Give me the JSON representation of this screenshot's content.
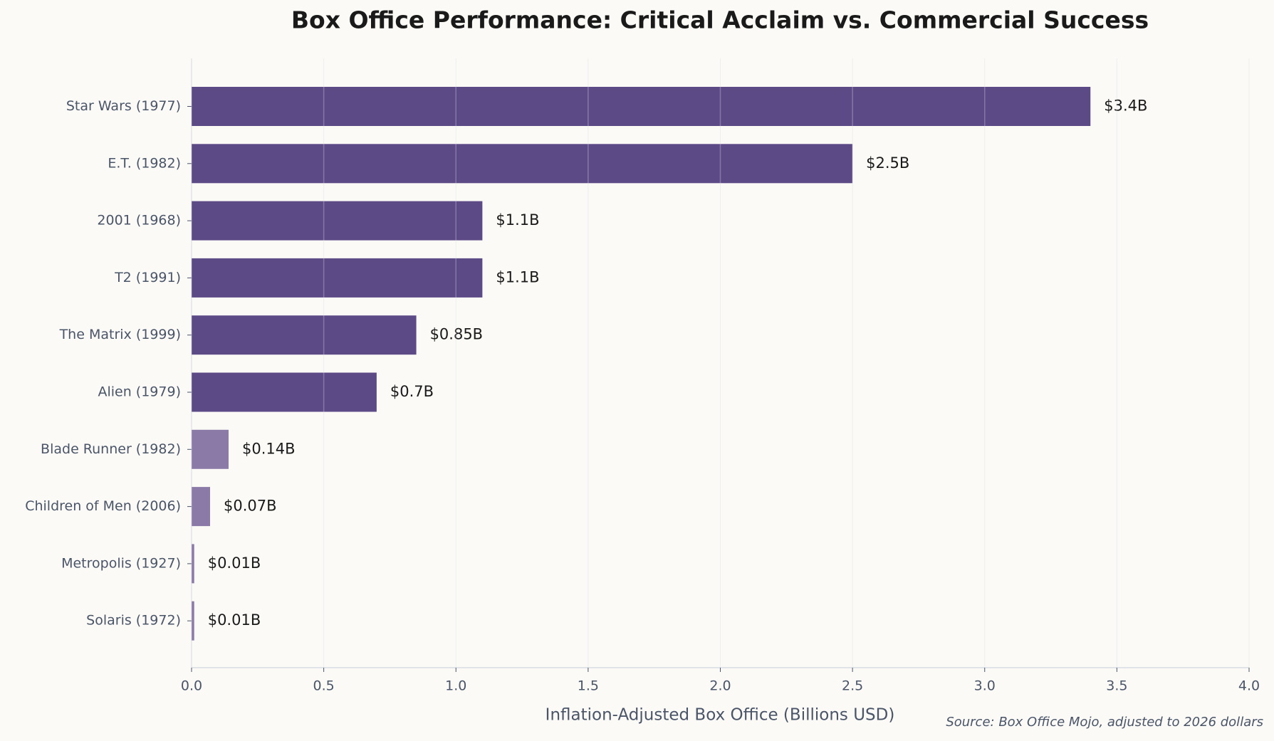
{
  "chart_data": {
    "type": "barh",
    "title": "Box Office Performance: Critical Acclaim vs. Commercial Success",
    "x_label": "Inflation-Adjusted Box Office (Billions USD)",
    "source": "Source: Box Office Mojo, adjusted to 2026 dollars",
    "categories": [
      "Star Wars (1977)",
      "E.T. (1982)",
      "2001 (1968)",
      "T2 (1991)",
      "The Matrix (1999)",
      "Alien (1979)",
      "Blade Runner (1982)",
      "Children of Men (2006)",
      "Metropolis (1927)",
      "Solaris (1972)"
    ],
    "values": [
      3.4,
      2.5,
      1.1,
      1.1,
      0.85,
      0.7,
      0.14,
      0.07,
      0.01,
      0.01
    ],
    "value_labels": [
      "$3.4B",
      "$2.5B",
      "$1.1B",
      "$1.1B",
      "$0.85B",
      "$0.7B",
      "$0.14B",
      "$0.07B",
      "$0.01B",
      "$0.01B"
    ],
    "colors": [
      "#5c4a87",
      "#5c4a87",
      "#5c4a87",
      "#5c4a87",
      "#5c4a87",
      "#5c4a87",
      "#8b7aa8",
      "#8b7aa8",
      "#8b7aa8",
      "#8b7aa8"
    ],
    "xlim": [
      0,
      4
    ],
    "xticks": [
      {
        "value": 0,
        "label": "0.0"
      },
      0.5,
      {
        "value": 1,
        "label": "1.0"
      },
      1.5,
      {
        "value": 2,
        "label": "2.0"
      },
      2.5,
      {
        "value": 3,
        "label": "3.0"
      },
      3.5,
      {
        "value": 4,
        "label": "4.0"
      }
    ],
    "grid": true
  }
}
